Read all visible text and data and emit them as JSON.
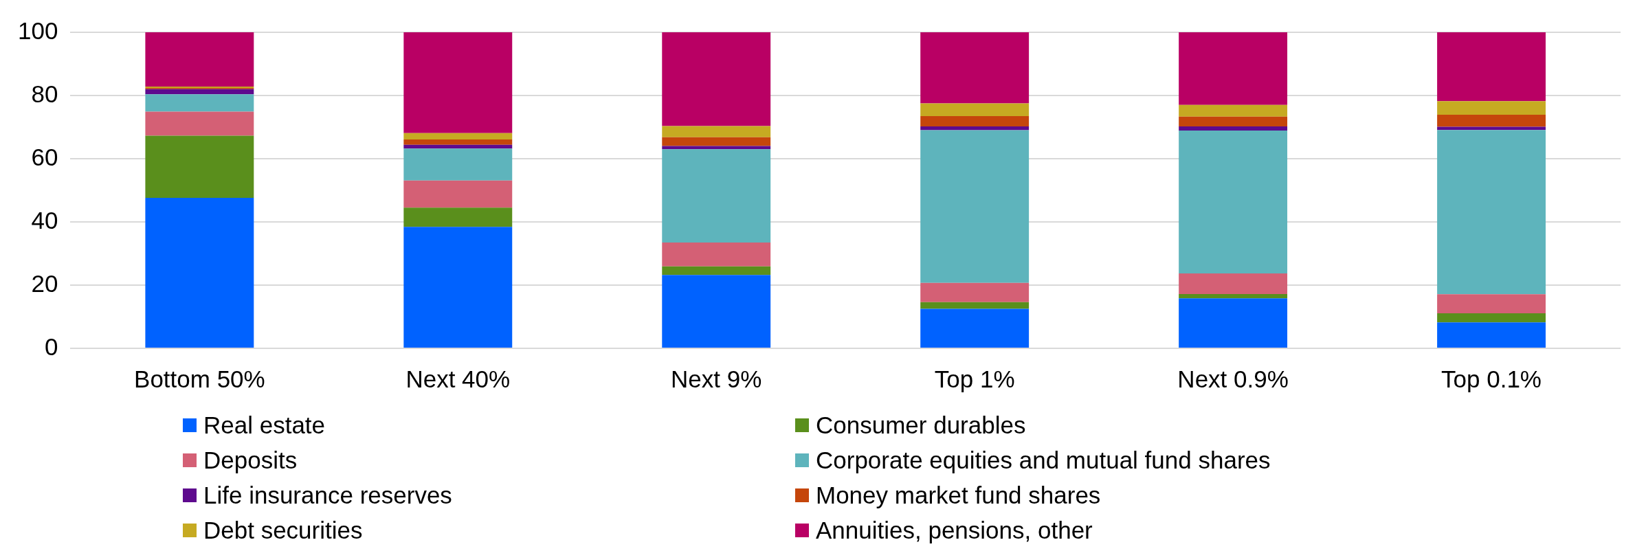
{
  "chart_data": {
    "type": "bar",
    "stacked": true,
    "categories": [
      "Bottom 50%",
      "Next 40%",
      "Next 9%",
      "Top 1%",
      "Next 0.9%",
      "Top 0.1%"
    ],
    "series": [
      {
        "name": "Real estate",
        "color": "#0062ff",
        "values": [
          47.6,
          38.4,
          23.2,
          12.5,
          15.8,
          8.2
        ]
      },
      {
        "name": "Consumer durables",
        "color": "#5a8f1c",
        "values": [
          19.7,
          6.1,
          2.7,
          2.1,
          1.4,
          2.9
        ]
      },
      {
        "name": "Deposits",
        "color": "#d46075",
        "values": [
          7.6,
          8.6,
          7.6,
          6.1,
          6.5,
          6.0
        ]
      },
      {
        "name": "Corporate equities and mutual fund shares",
        "color": "#5eb4bc",
        "values": [
          5.5,
          10.1,
          29.5,
          48.3,
          45.2,
          52.0
        ]
      },
      {
        "name": "Life insurance reserves",
        "color": "#5e0a8e",
        "values": [
          1.6,
          1.2,
          1.0,
          1.2,
          1.3,
          1.0
        ]
      },
      {
        "name": "Money market fund shares",
        "color": "#c5460b",
        "values": [
          0.4,
          1.7,
          2.8,
          3.3,
          3.1,
          3.8
        ]
      },
      {
        "name": "Debt securities",
        "color": "#c6aa22",
        "values": [
          0.4,
          2.0,
          3.5,
          4.0,
          3.7,
          4.3
        ]
      },
      {
        "name": "Annuities, pensions, other",
        "color": "#b90064",
        "values": [
          17.2,
          31.9,
          29.7,
          22.5,
          23.0,
          21.8
        ]
      }
    ],
    "ylim": [
      0,
      100
    ],
    "yticks": [
      0,
      20,
      40,
      60,
      80,
      100
    ],
    "grid": "y",
    "legend": "bottom"
  }
}
